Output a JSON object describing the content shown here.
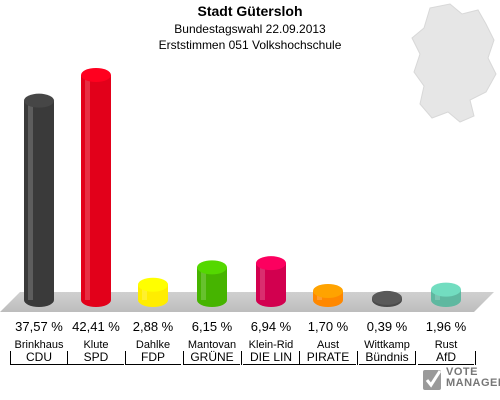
{
  "header": {
    "title": "Stadt Gütersloh",
    "subtitle": "Bundestagswahl 22.09.2013",
    "subtitle2": "Erststimmen 051 Volkshochschule"
  },
  "chart_data": {
    "type": "bar",
    "categories": [
      "CDU",
      "SPD",
      "FDP",
      "GRÜNE",
      "DIE LINKE",
      "PIRATEN",
      "Bündnis",
      "AfD"
    ],
    "candidates": [
      "Brinkhaus",
      "Klute",
      "Dahlke",
      "Mantovan",
      "Klein-Rid",
      "Aust",
      "Wittkamp",
      "Rust"
    ],
    "party_labels": [
      "CDU",
      "SPD",
      "FDP",
      "GRÜNE",
      "DIE LIN",
      "PIRATE",
      "Bündnis",
      "AfD"
    ],
    "values": [
      37.57,
      42.41,
      2.88,
      6.15,
      6.94,
      1.7,
      0.39,
      1.96
    ],
    "value_labels": [
      "37,57 %",
      "42,41 %",
      "2,88 %",
      "6,15 %",
      "6,94 %",
      "1,70 %",
      "0,39 %",
      "1,96 %"
    ],
    "colors": [
      "#3a3a3a",
      "#e2001a",
      "#ffed00",
      "#46b400",
      "#d2004f",
      "#ff8800",
      "#4a4a4a",
      "#5fb8a0"
    ],
    "ylim": [
      0,
      45
    ]
  },
  "logo": {
    "line1": "VOTE",
    "line2": "MANAGER"
  }
}
